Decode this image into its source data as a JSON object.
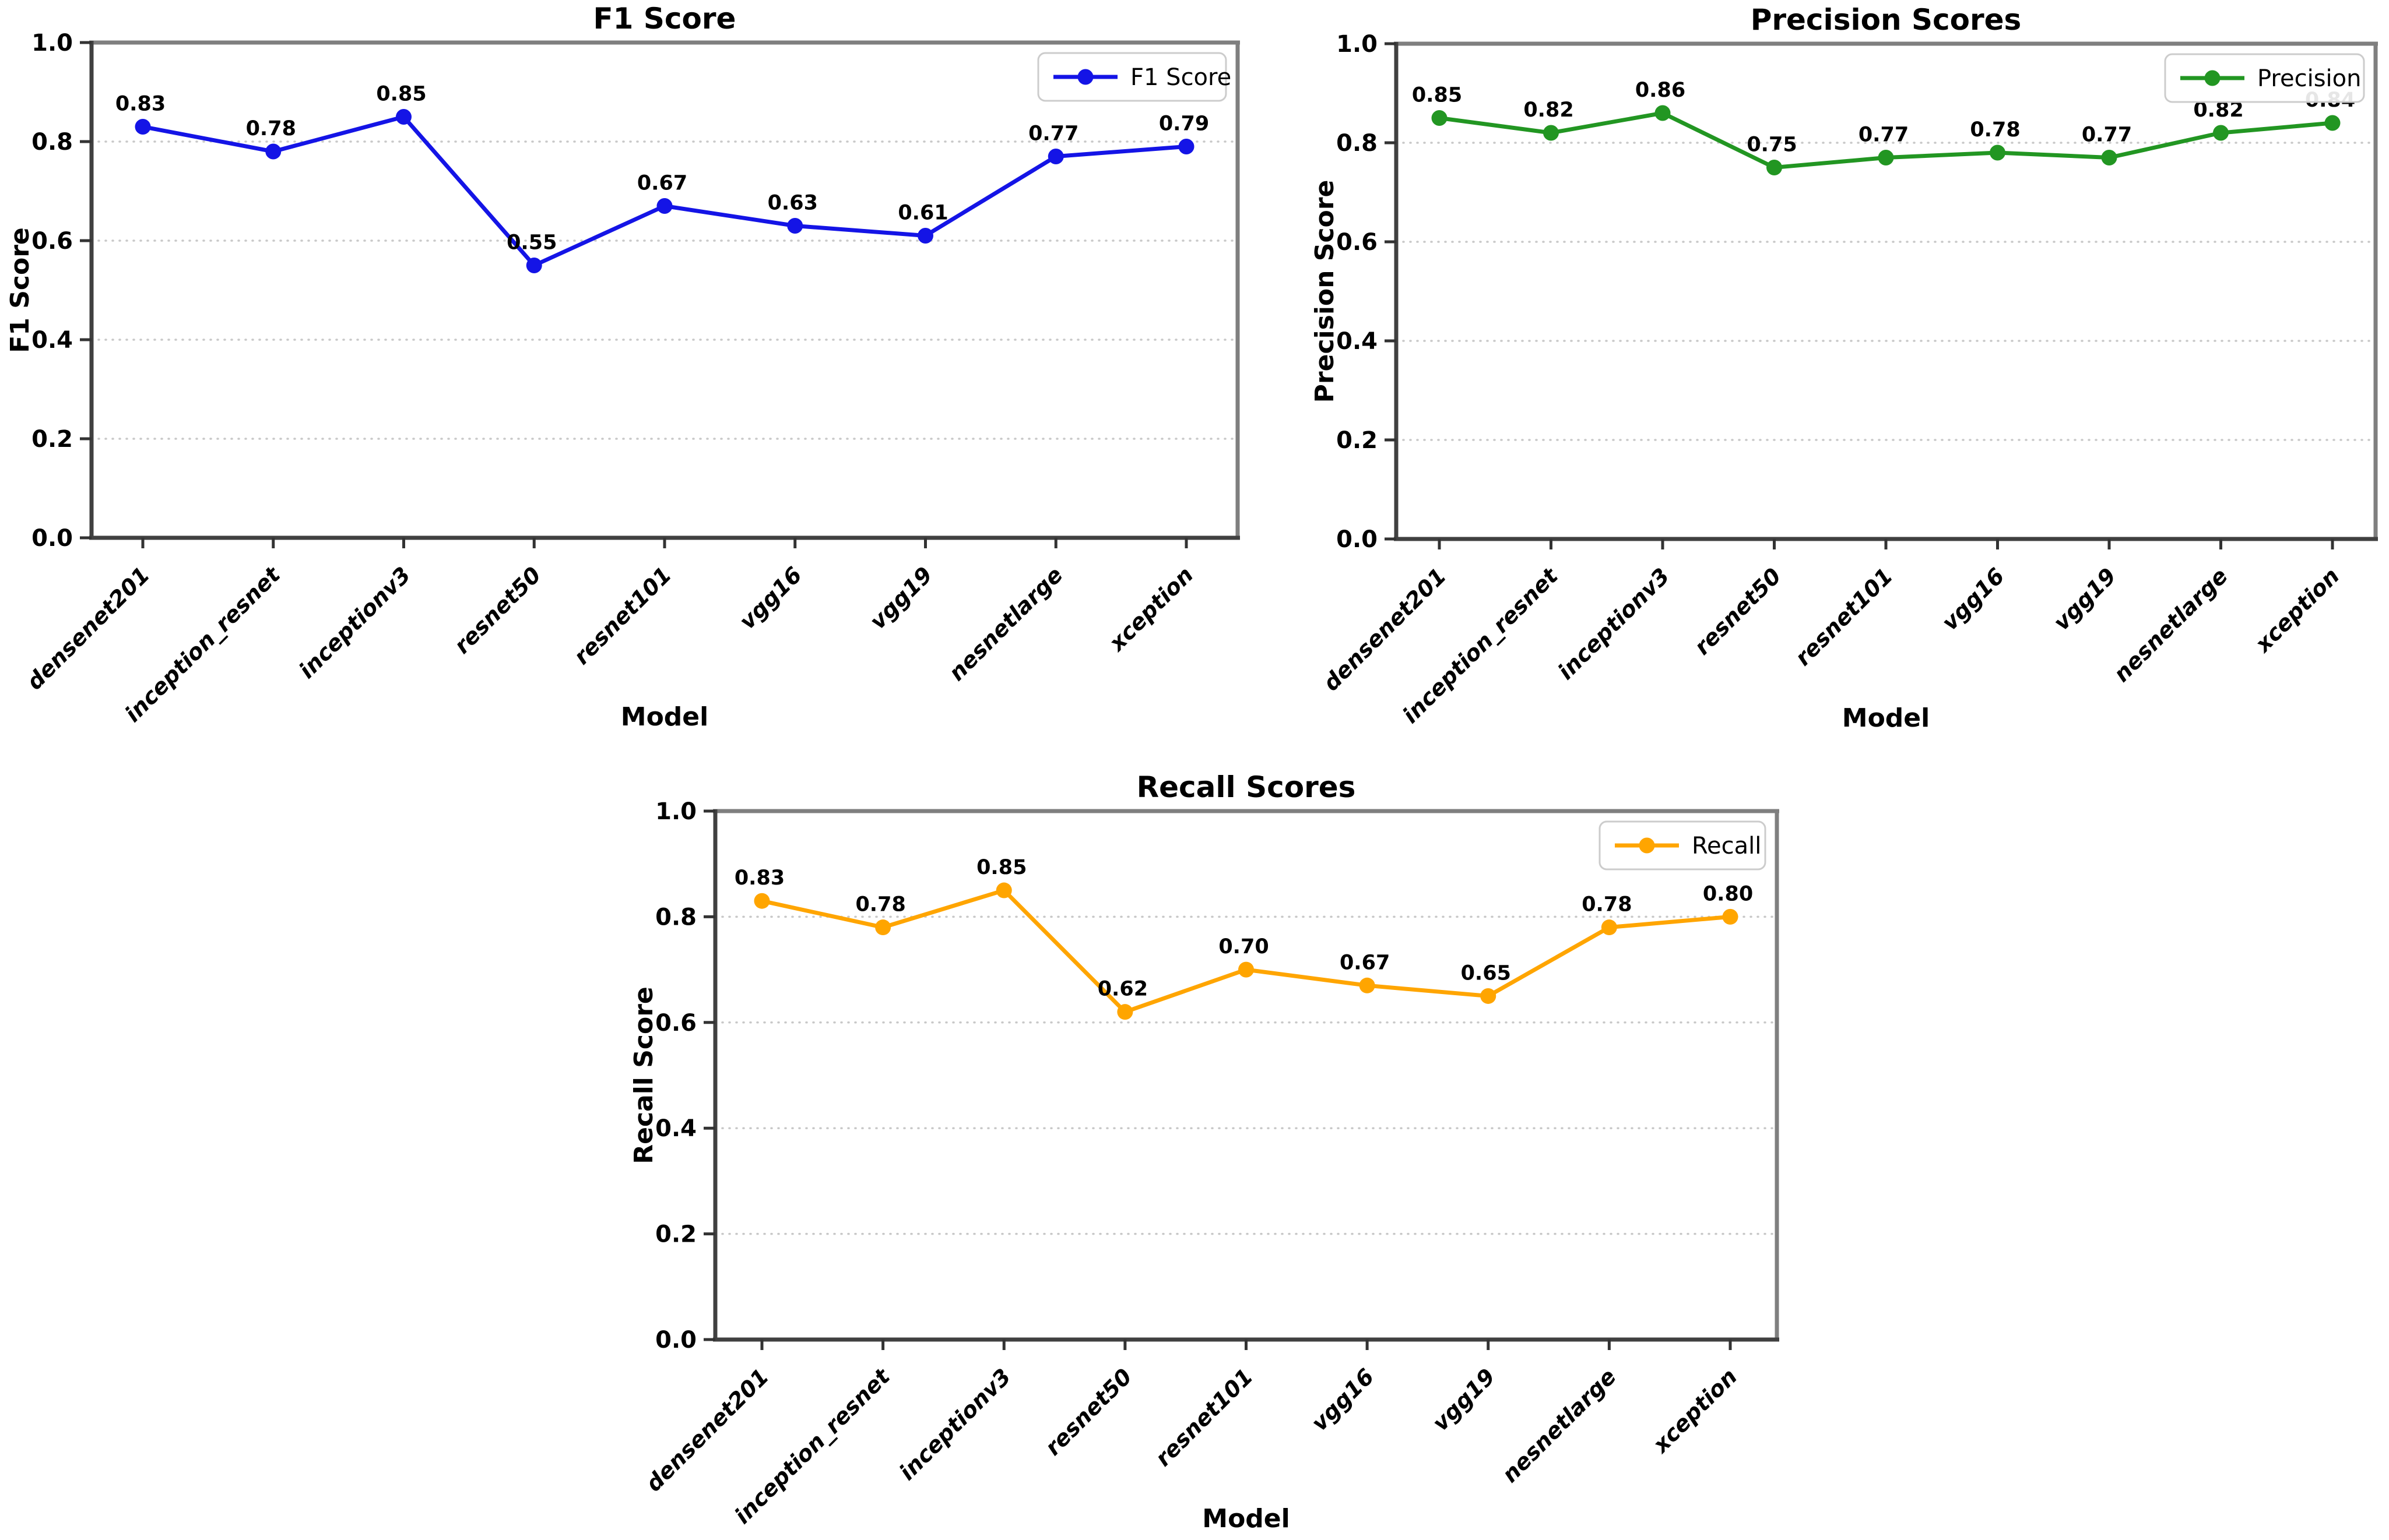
{
  "figure": {
    "description_visible_text_only": true,
    "background_color": "#ffffff"
  },
  "chart_data": [
    {
      "type": "line",
      "title": "F1 Score",
      "xlabel": "Model",
      "ylabel": "F1 Score",
      "legend": "F1 Score",
      "legend_position": "upper right",
      "line_color": "#1414e6",
      "marker": "circle",
      "grid": "horizontal dotted",
      "ylim": [
        0.0,
        1.0
      ],
      "yticks": [
        0.0,
        0.2,
        0.4,
        0.6,
        0.8,
        1.0
      ],
      "categories": [
        "densenet201",
        "inception_resnet",
        "inceptionv3",
        "resnet50",
        "resnet101",
        "vgg16",
        "vgg19",
        "nesnetlarge",
        "xception"
      ],
      "values": [
        0.83,
        0.78,
        0.85,
        0.55,
        0.67,
        0.63,
        0.61,
        0.77,
        0.79
      ]
    },
    {
      "type": "line",
      "title": "Precision Scores",
      "xlabel": "Model",
      "ylabel": "Precision Score",
      "legend": "Precision",
      "legend_position": "upper right",
      "line_color": "#229622",
      "marker": "circle",
      "grid": "horizontal dotted",
      "ylim": [
        0.0,
        1.0
      ],
      "yticks": [
        0.0,
        0.2,
        0.4,
        0.6,
        0.8,
        1.0
      ],
      "categories": [
        "densenet201",
        "inception_resnet",
        "inceptionv3",
        "resnet50",
        "resnet101",
        "vgg16",
        "vgg19",
        "nesnetlarge",
        "xception"
      ],
      "values": [
        0.85,
        0.82,
        0.86,
        0.75,
        0.77,
        0.78,
        0.77,
        0.82,
        0.84
      ]
    },
    {
      "type": "line",
      "title": "Recall Scores",
      "xlabel": "Model",
      "ylabel": "Recall Score",
      "legend": "Recall",
      "legend_position": "upper right",
      "line_color": "#FFA500",
      "marker": "circle",
      "grid": "horizontal dotted",
      "ylim": [
        0.0,
        1.0
      ],
      "yticks": [
        0.0,
        0.2,
        0.4,
        0.6,
        0.8,
        1.0
      ],
      "categories": [
        "densenet201",
        "inception_resnet",
        "inceptionv3",
        "resnet50",
        "resnet101",
        "vgg16",
        "vgg19",
        "nesnetlarge",
        "xception"
      ],
      "values": [
        0.83,
        0.78,
        0.85,
        0.62,
        0.7,
        0.67,
        0.65,
        0.78,
        0.8
      ]
    }
  ],
  "colors": {
    "f1_line": "#1414e6",
    "precision_line": "#229622",
    "recall_line": "#FFA500",
    "gridline": "#c8c8c8",
    "spine_top_right": "#7f7f7f",
    "spine_left_bottom": "#404040",
    "text": "#000000",
    "legend_border": "#cccccc"
  }
}
